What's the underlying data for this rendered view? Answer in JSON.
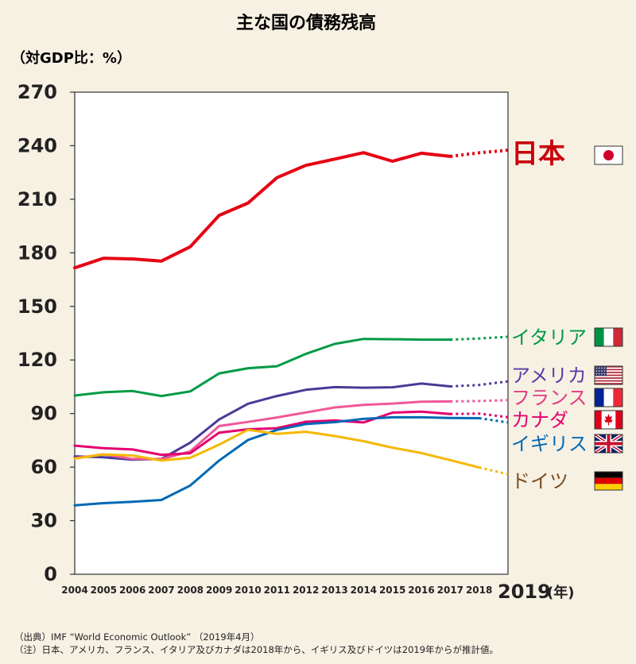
{
  "chart_data": {
    "type": "line",
    "title": "主な国の債務残高",
    "unit_label": "（対GDP比：%）",
    "ylim": [
      0,
      270
    ],
    "yticks": [
      0,
      30,
      60,
      90,
      120,
      150,
      180,
      210,
      240,
      270
    ],
    "x": [
      2004,
      2005,
      2006,
      2007,
      2008,
      2009,
      2010,
      2011,
      2012,
      2013,
      2014,
      2015,
      2016,
      2017,
      2018,
      2019
    ],
    "xtick_labels": [
      "2004",
      "2005",
      "2006",
      "2007",
      "2008",
      "2009",
      "2010",
      "2011",
      "2012",
      "2013",
      "2014",
      "2015",
      "2016",
      "2017",
      "2018"
    ],
    "x_last_label": "2019",
    "x_unit": "(年)",
    "grid": false,
    "series": [
      {
        "name": "日本",
        "color": "#e60012",
        "label_color": "#c8000a",
        "flag": "japan-flag",
        "values": [
          171.6,
          177.0,
          176.6,
          175.4,
          183.4,
          201.0,
          207.9,
          222.1,
          229.0,
          232.5,
          236.1,
          231.3,
          235.8,
          234.0,
          236.0,
          237.5
        ],
        "estimated_from": 2017
      },
      {
        "name": "イタリア",
        "color": "#009a44",
        "label_color": "#009a44",
        "flag": "italy-flag",
        "values": [
          100.1,
          101.9,
          102.6,
          99.8,
          102.4,
          112.5,
          115.4,
          116.5,
          123.4,
          129.0,
          131.8,
          131.6,
          131.4,
          131.4,
          132.0,
          133.0
        ],
        "estimated_from": 2017
      },
      {
        "name": "アメリカ",
        "color": "#4b3a96",
        "label_color": "#5a3aa6",
        "flag": "usa-flag",
        "values": [
          66.0,
          65.5,
          64.2,
          64.6,
          73.7,
          86.7,
          95.5,
          99.8,
          103.3,
          104.8,
          104.5,
          104.7,
          106.8,
          105.2,
          106.0,
          108.0
        ],
        "estimated_from": 2017
      },
      {
        "name": "フランス",
        "color": "#f0579b",
        "label_color": "#e03c82",
        "flag": "france-flag",
        "values": [
          65.0,
          67.1,
          64.6,
          64.5,
          68.8,
          83.0,
          85.3,
          87.8,
          90.6,
          93.4,
          94.9,
          95.6,
          96.6,
          96.8,
          97.0,
          97.5
        ],
        "estimated_from": 2017
      },
      {
        "name": "カナダ",
        "color": "#e4006e",
        "label_color": "#e4006e",
        "flag": "canada-flag",
        "values": [
          72.0,
          70.6,
          69.9,
          66.9,
          67.8,
          79.3,
          81.2,
          81.8,
          85.4,
          86.1,
          85.0,
          90.5,
          91.1,
          89.7,
          90.0,
          88.0
        ],
        "estimated_from": 2017
      },
      {
        "name": "イギリス",
        "color": "#0069b4",
        "label_color": "#0069b4",
        "flag": "uk-flag",
        "values": [
          38.6,
          39.8,
          40.6,
          41.6,
          49.7,
          63.7,
          75.2,
          80.8,
          84.1,
          85.2,
          87.0,
          87.9,
          87.9,
          87.5,
          87.4,
          85.0
        ],
        "estimated_from": 2018
      },
      {
        "name": "ドイツ",
        "color": "#f5b800",
        "label_color": "#7a4e1e",
        "flag": "germany-flag",
        "values": [
          64.8,
          67.1,
          66.5,
          63.7,
          65.2,
          72.6,
          80.9,
          78.6,
          79.8,
          77.4,
          74.5,
          70.9,
          67.9,
          63.9,
          59.8,
          56.0
        ],
        "estimated_from": 2018
      }
    ]
  },
  "notes": {
    "source": "（出典）IMF “World Economic Outlook” （2019年4月）",
    "note": "（注）日本、アメリカ、フランス、イタリア及びカナダは2018年から、イギリス及びドイツは2019年からが推計値。"
  }
}
